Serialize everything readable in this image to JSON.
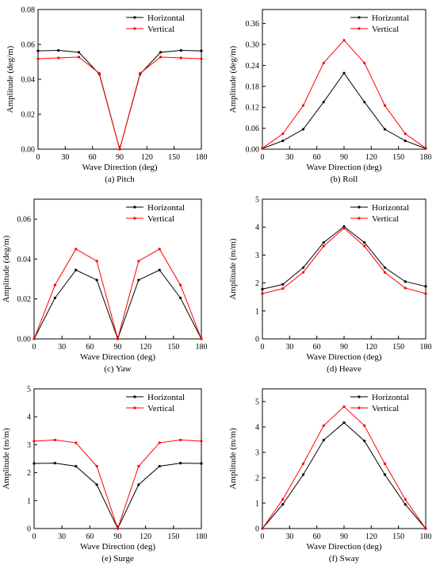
{
  "chart_data": [
    {
      "type": "line",
      "caption": "(a) Pitch",
      "xlabel": "Wave Direction (deg)",
      "ylabel": "Amplitude (deg/m)",
      "xlim": [
        0,
        180
      ],
      "ylim": [
        0,
        0.08
      ],
      "xticks": [
        0,
        30,
        60,
        90,
        120,
        150,
        180
      ],
      "yticks": [
        0.0,
        0.02,
        0.04,
        0.06,
        0.08
      ],
      "ytick_labels": [
        "0.00",
        "0.02",
        "0.04",
        "0.06",
        "0.08"
      ],
      "legend": "top-right",
      "x": [
        0,
        22.5,
        45,
        67.5,
        90,
        112.5,
        135,
        157.5,
        180
      ],
      "series": [
        {
          "name": "Horizontal",
          "color": "#000000",
          "values": [
            0.0563,
            0.0566,
            0.0555,
            0.043,
            0.0,
            0.043,
            0.0555,
            0.0566,
            0.0563
          ]
        },
        {
          "name": "Vertical",
          "color": "#ff0000",
          "values": [
            0.0518,
            0.0523,
            0.0528,
            0.0435,
            0.0,
            0.0435,
            0.0528,
            0.0523,
            0.0518
          ]
        }
      ]
    },
    {
      "type": "line",
      "caption": "(b) Roll",
      "xlabel": "Wave Direction (deg)",
      "ylabel": "Amplitude (deg/m)",
      "xlim": [
        0,
        180
      ],
      "ylim": [
        0,
        0.4
      ],
      "xticks": [
        0,
        30,
        60,
        90,
        120,
        150,
        180
      ],
      "yticks": [
        0.0,
        0.06,
        0.12,
        0.18,
        0.24,
        0.3,
        0.36
      ],
      "ytick_labels": [
        "0.00",
        "0.06",
        "0.12",
        "0.18",
        "0.24",
        "0.30",
        "0.36"
      ],
      "legend": "top-right",
      "x": [
        0,
        22.5,
        45,
        67.5,
        90,
        112.5,
        135,
        157.5,
        180
      ],
      "series": [
        {
          "name": "Horizontal",
          "color": "#000000",
          "values": [
            0.002,
            0.024,
            0.057,
            0.135,
            0.218,
            0.135,
            0.057,
            0.024,
            0.002
          ]
        },
        {
          "name": "Vertical",
          "color": "#ff0000",
          "values": [
            0.003,
            0.044,
            0.125,
            0.247,
            0.312,
            0.247,
            0.125,
            0.044,
            0.003
          ]
        }
      ]
    },
    {
      "type": "line",
      "caption": "(c) Yaw",
      "xlabel": "Wave Direction (deg)",
      "ylabel": "Amplitude (deg/m)",
      "xlim": [
        0,
        180
      ],
      "ylim": [
        0,
        0.07
      ],
      "xticks": [
        0,
        30,
        60,
        90,
        120,
        150,
        180
      ],
      "yticks": [
        0.0,
        0.02,
        0.04,
        0.06
      ],
      "ytick_labels": [
        "0.00",
        "0.02",
        "0.04",
        "0.06"
      ],
      "legend": "top-right",
      "x": [
        0,
        22.5,
        45,
        67.5,
        90,
        112.5,
        135,
        157.5,
        180
      ],
      "series": [
        {
          "name": "Horizontal",
          "color": "#000000",
          "values": [
            0.0,
            0.0205,
            0.0345,
            0.0295,
            0.0,
            0.0295,
            0.0345,
            0.0205,
            0.0
          ]
        },
        {
          "name": "Vertical",
          "color": "#ff0000",
          "values": [
            0.0,
            0.027,
            0.045,
            0.039,
            0.0,
            0.039,
            0.045,
            0.027,
            0.0
          ]
        }
      ]
    },
    {
      "type": "line",
      "caption": "(d) Heave",
      "xlabel": "Wave Direction (deg)",
      "ylabel": "Amplitude (m/m)",
      "xlim": [
        0,
        180
      ],
      "ylim": [
        0,
        5
      ],
      "xticks": [
        0,
        30,
        60,
        90,
        120,
        150,
        180
      ],
      "yticks": [
        0,
        1,
        2,
        3,
        4,
        5
      ],
      "ytick_labels": [
        "0",
        "1",
        "2",
        "3",
        "4",
        "5"
      ],
      "legend": "top-right",
      "x": [
        0,
        22.5,
        45,
        67.5,
        90,
        112.5,
        135,
        157.5,
        180
      ],
      "series": [
        {
          "name": "Horizontal",
          "color": "#000000",
          "values": [
            1.78,
            1.95,
            2.55,
            3.45,
            4.02,
            3.45,
            2.55,
            2.05,
            1.88
          ]
        },
        {
          "name": "Vertical",
          "color": "#ff0000",
          "values": [
            1.62,
            1.8,
            2.38,
            3.32,
            3.96,
            3.32,
            2.38,
            1.82,
            1.62
          ]
        }
      ]
    },
    {
      "type": "line",
      "caption": "(e) Surge",
      "xlabel": "Wave Direction (deg)",
      "ylabel": "Amplitude (m/m)",
      "xlim": [
        0,
        180
      ],
      "ylim": [
        0,
        5
      ],
      "xticks": [
        0,
        30,
        60,
        90,
        120,
        150,
        180
      ],
      "yticks": [
        0,
        1,
        2,
        3,
        4,
        5
      ],
      "ytick_labels": [
        "0",
        "1",
        "2",
        "3",
        "4",
        "5"
      ],
      "legend": "top-right",
      "x": [
        0,
        22.5,
        45,
        67.5,
        90,
        112.5,
        135,
        157.5,
        180
      ],
      "series": [
        {
          "name": "Horizontal",
          "color": "#000000",
          "values": [
            2.33,
            2.34,
            2.23,
            1.57,
            0.0,
            1.57,
            2.23,
            2.34,
            2.33
          ]
        },
        {
          "name": "Vertical",
          "color": "#ff0000",
          "values": [
            3.13,
            3.17,
            3.07,
            2.23,
            0.0,
            2.23,
            3.07,
            3.17,
            3.13
          ]
        }
      ]
    },
    {
      "type": "line",
      "caption": "(f) Sway",
      "xlabel": "Wave Direction (deg)",
      "ylabel": "Amplitude (m/m)",
      "xlim": [
        0,
        180
      ],
      "ylim": [
        0,
        5.5
      ],
      "xticks": [
        0,
        30,
        60,
        90,
        120,
        150,
        180
      ],
      "yticks": [
        0,
        1,
        2,
        3,
        4,
        5
      ],
      "ytick_labels": [
        "0",
        "1",
        "2",
        "3",
        "4",
        "5"
      ],
      "legend": "top-right",
      "x": [
        0,
        22.5,
        45,
        67.5,
        90,
        112.5,
        135,
        157.5,
        180
      ],
      "series": [
        {
          "name": "Horizontal",
          "color": "#000000",
          "values": [
            0.0,
            0.95,
            2.12,
            3.48,
            4.17,
            3.45,
            2.12,
            0.95,
            0.0
          ]
        },
        {
          "name": "Vertical",
          "color": "#ff0000",
          "values": [
            0.0,
            1.15,
            2.55,
            4.05,
            4.8,
            4.05,
            2.55,
            1.15,
            0.0
          ]
        }
      ]
    }
  ]
}
